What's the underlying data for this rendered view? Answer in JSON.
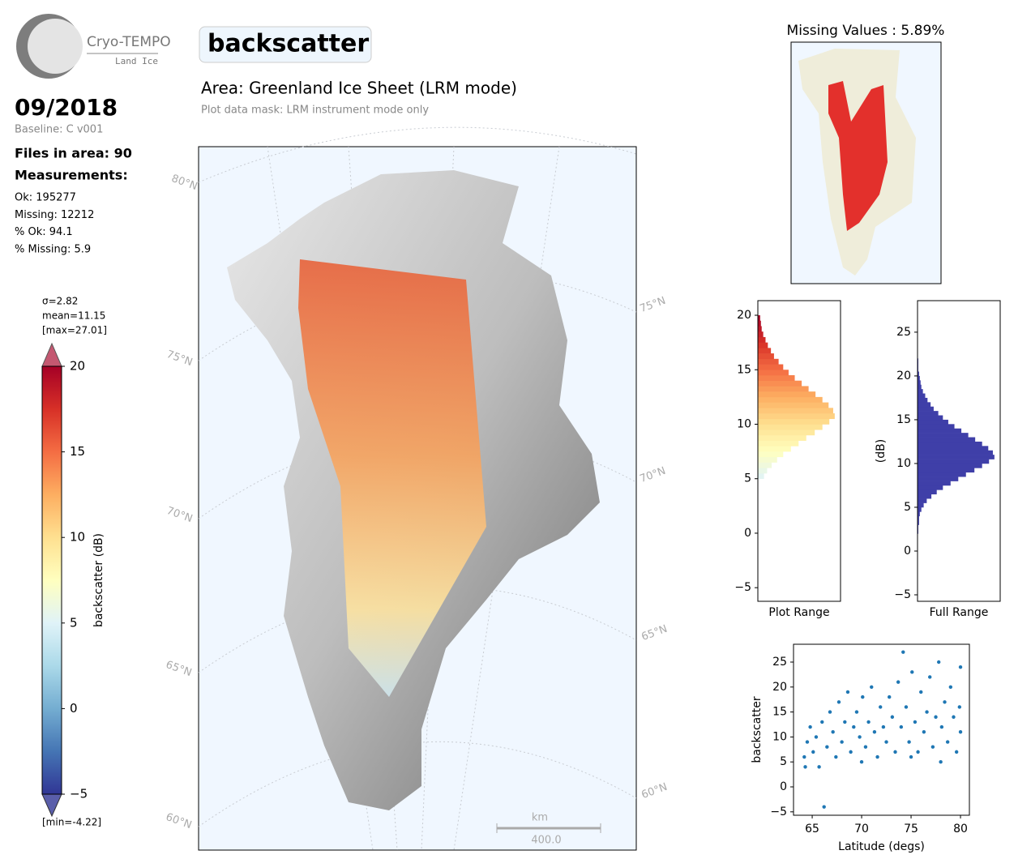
{
  "logo": {
    "name": "Cryo-TEMPO",
    "subtitle": "Land Ice"
  },
  "header": {
    "date": "09/2018",
    "baseline": "Baseline: C v001",
    "files": "Files in area: 90",
    "measurements_title": "Measurements:",
    "stats": [
      "Ok: 195277",
      "Missing: 12212",
      "% Ok: 94.1",
      "% Missing: 5.9"
    ]
  },
  "title": "backscatter",
  "area_title": "Area: Greenland Ice Sheet (LRM mode)",
  "mask_note": "Plot data mask: LRM instrument mode only",
  "colorbar": {
    "label": "backscatter (dB)",
    "stats": [
      "σ=2.82",
      "mean=11.15",
      "[max=27.01]"
    ],
    "min_label": "[min=-4.22]",
    "lim": [
      -5,
      20
    ],
    "ticks": [
      {
        "value": -5,
        "label": "−5"
      },
      0,
      5,
      10,
      15,
      20
    ],
    "colors": [
      "#313695",
      "#4575b4",
      "#74add1",
      "#abd9e9",
      "#e0f3f8",
      "#ffffbf",
      "#fee090",
      "#fdae61",
      "#f46d43",
      "#d73027",
      "#a50026"
    ]
  },
  "map": {
    "lat_labels_left": [
      "80°N",
      "75°N",
      "70°N",
      "65°N",
      "60°N"
    ],
    "lat_labels_right": [
      "75°N",
      "70°N",
      "65°N",
      "60°N"
    ],
    "scalebar": {
      "unit": "km",
      "length": "400.0"
    }
  },
  "missing_map": {
    "title": "Missing Values : 5.89%"
  },
  "chart_data": [
    {
      "type": "histogram",
      "orientation": "horizontal",
      "xlabel": "Plot Range",
      "color_scale": "colorbar",
      "bins": [
        5,
        5.5,
        6,
        6.5,
        7,
        7.5,
        8,
        8.5,
        9,
        9.5,
        10,
        10.5,
        11,
        11.5,
        12,
        12.5,
        13,
        13.5,
        14,
        14.5,
        15,
        15.5,
        16,
        16.5,
        17,
        17.5,
        18,
        18.5,
        19,
        19.5,
        20
      ],
      "values": [
        8,
        12,
        18,
        25,
        33,
        43,
        53,
        63,
        74,
        84,
        93,
        100,
        98,
        92,
        84,
        75,
        66,
        57,
        48,
        40,
        33,
        27,
        21,
        17,
        13,
        10,
        7,
        5,
        4,
        3
      ],
      "ylim": [
        -6.25,
        21.34
      ],
      "yticks": [
        {
          "value": -5,
          "label": "−5"
        },
        0,
        5,
        10,
        15,
        20
      ]
    },
    {
      "type": "histogram",
      "orientation": "horizontal",
      "xlabel": "Full Range",
      "ylabel": "(dB)",
      "color": "#3f3fa8",
      "bins": [
        2,
        2.5,
        3,
        3.5,
        4,
        4.5,
        5,
        5.5,
        6,
        6.5,
        7,
        7.5,
        8,
        8.5,
        9,
        9.5,
        10,
        10.5,
        11,
        11.5,
        12,
        12.5,
        13,
        13.5,
        14,
        14.5,
        15,
        15.5,
        16,
        16.5,
        17,
        17.5,
        18,
        18.5,
        19,
        19.5,
        20,
        20.5,
        21,
        21.5,
        22
      ],
      "values": [
        1,
        1,
        2,
        2,
        3,
        5,
        8,
        12,
        18,
        25,
        33,
        43,
        53,
        63,
        74,
        84,
        93,
        100,
        98,
        92,
        84,
        75,
        66,
        57,
        48,
        40,
        33,
        27,
        21,
        17,
        13,
        10,
        7,
        5,
        4,
        3,
        2,
        1,
        1,
        1
      ],
      "ylim": [
        -5.74,
        28.6
      ],
      "yticks": [
        {
          "value": -5,
          "label": "−5"
        },
        0,
        5,
        10,
        15,
        20,
        25
      ]
    },
    {
      "type": "scatter",
      "xlabel": "Latitude (degs)",
      "ylabel": "backscatter",
      "color": "#1f77b4",
      "x": [
        64.2,
        64.5,
        64.8,
        65.1,
        65.4,
        65.7,
        66.0,
        66.2,
        66.5,
        66.8,
        67.1,
        67.4,
        67.7,
        68.0,
        68.3,
        68.6,
        68.9,
        69.2,
        69.5,
        69.8,
        70.1,
        70.4,
        70.7,
        71.0,
        71.3,
        71.6,
        71.9,
        72.2,
        72.5,
        72.8,
        73.1,
        73.4,
        73.7,
        74.0,
        74.2,
        74.5,
        74.8,
        75.1,
        75.4,
        75.7,
        76.0,
        76.3,
        76.6,
        76.9,
        77.2,
        77.5,
        77.8,
        78.1,
        78.4,
        78.7,
        79.0,
        79.3,
        79.6,
        79.9,
        80.0,
        64.3,
        70.0,
        75.0,
        78.0,
        80.0
      ],
      "values": [
        6,
        9,
        12,
        7,
        10,
        4,
        13,
        -4,
        8,
        15,
        11,
        6,
        17,
        9,
        13,
        19,
        7,
        12,
        15,
        10,
        18,
        8,
        13,
        20,
        11,
        6,
        16,
        12,
        9,
        18,
        14,
        7,
        21,
        12,
        27,
        16,
        9,
        23,
        13,
        7,
        19,
        11,
        15,
        22,
        8,
        14,
        25,
        12,
        17,
        9,
        20,
        14,
        7,
        16,
        11,
        4,
        5,
        6,
        5,
        24
      ],
      "xlim": [
        63.11,
        80.9
      ],
      "xticks": [
        65,
        70,
        75,
        80
      ],
      "ylim": [
        -5.68,
        28.57
      ],
      "yticks": [
        {
          "value": -5,
          "label": "−5"
        },
        0,
        5,
        10,
        15,
        20,
        25
      ]
    }
  ]
}
